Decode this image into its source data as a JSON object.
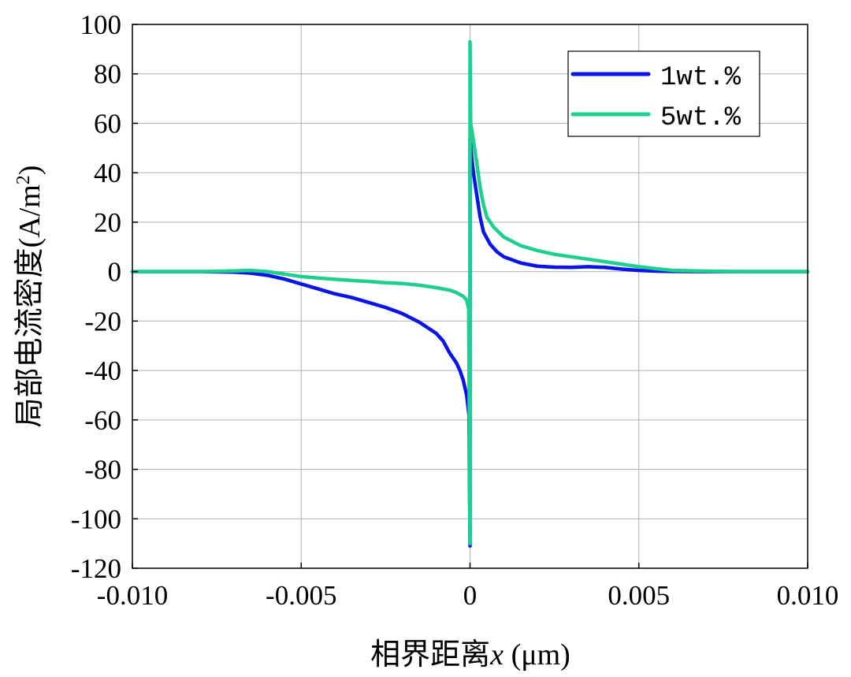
{
  "chart_data": {
    "type": "line",
    "title": "",
    "xlabel": {
      "prefix": "相界距离",
      "variable": "x",
      "unit": " (μm)"
    },
    "ylabel": {
      "text": "局部电流密度(A/m",
      "sup": "2",
      "close": ")"
    },
    "xlim": [
      -0.01,
      0.01
    ],
    "ylim": [
      -120,
      100
    ],
    "xticks": [
      -0.01,
      -0.005,
      0,
      0.005,
      0.01
    ],
    "xtick_labels": [
      "-0.010",
      "-0.005",
      "0",
      "0.005",
      "0.010"
    ],
    "yticks": [
      -120,
      -100,
      -80,
      -60,
      -40,
      -20,
      0,
      20,
      40,
      60,
      80,
      100
    ],
    "ytick_labels": [
      "-120",
      "-100",
      "-80",
      "-60",
      "-40",
      "-20",
      "0",
      "20",
      "40",
      "60",
      "80",
      "100"
    ],
    "grid": true,
    "legend": {
      "position": "top-right"
    },
    "series": [
      {
        "name": "1wt.%",
        "color": "#0a14e6",
        "points": [
          [
            -0.01,
            0
          ],
          [
            -0.009,
            0
          ],
          [
            -0.008,
            0
          ],
          [
            -0.007,
            -0.2
          ],
          [
            -0.0065,
            -0.6
          ],
          [
            -0.006,
            -1.5
          ],
          [
            -0.0055,
            -3
          ],
          [
            -0.005,
            -5
          ],
          [
            -0.0045,
            -7
          ],
          [
            -0.004,
            -9
          ],
          [
            -0.0035,
            -10.5
          ],
          [
            -0.003,
            -12.5
          ],
          [
            -0.0025,
            -14.5
          ],
          [
            -0.002,
            -17
          ],
          [
            -0.0015,
            -20.5
          ],
          [
            -0.001,
            -25
          ],
          [
            -0.0008,
            -28
          ],
          [
            -0.0006,
            -33
          ],
          [
            -0.0004,
            -37
          ],
          [
            -0.0003,
            -40
          ],
          [
            -0.0002,
            -44
          ],
          [
            -0.0001,
            -50
          ],
          [
            -3e-05,
            -58
          ],
          [
            0,
            -111
          ],
          [
            0,
            54
          ],
          [
            5e-05,
            46
          ],
          [
            0.0001,
            40
          ],
          [
            0.0002,
            31
          ],
          [
            0.0003,
            22
          ],
          [
            0.0004,
            16
          ],
          [
            0.0006,
            11
          ],
          [
            0.0008,
            8
          ],
          [
            0.001,
            6
          ],
          [
            0.0015,
            3.5
          ],
          [
            0.002,
            2.2
          ],
          [
            0.0025,
            1.8
          ],
          [
            0.003,
            1.7
          ],
          [
            0.0035,
            2
          ],
          [
            0.004,
            1.7
          ],
          [
            0.0045,
            1
          ],
          [
            0.005,
            0.5
          ],
          [
            0.0055,
            0.2
          ],
          [
            0.006,
            0.1
          ],
          [
            0.007,
            0
          ],
          [
            0.008,
            0
          ],
          [
            0.009,
            0
          ],
          [
            0.01,
            0
          ]
        ]
      },
      {
        "name": "5wt.%",
        "color": "#1ecf8e",
        "points": [
          [
            -0.01,
            0
          ],
          [
            -0.009,
            0
          ],
          [
            -0.008,
            0
          ],
          [
            -0.007,
            0.3
          ],
          [
            -0.0065,
            0.5
          ],
          [
            -0.006,
            0
          ],
          [
            -0.0055,
            -1
          ],
          [
            -0.005,
            -2
          ],
          [
            -0.0045,
            -2.6
          ],
          [
            -0.004,
            -3.1
          ],
          [
            -0.0035,
            -3.6
          ],
          [
            -0.003,
            -4
          ],
          [
            -0.0025,
            -4.5
          ],
          [
            -0.002,
            -4.8
          ],
          [
            -0.0015,
            -5.5
          ],
          [
            -0.001,
            -6.5
          ],
          [
            -0.0006,
            -7.5
          ],
          [
            -0.0004,
            -8.5
          ],
          [
            -0.0002,
            -10
          ],
          [
            -0.0001,
            -11.5
          ],
          [
            -4e-05,
            -15
          ],
          [
            0,
            -110
          ],
          [
            0,
            93
          ],
          [
            2e-05,
            60
          ],
          [
            0.0001,
            53
          ],
          [
            0.0002,
            44
          ],
          [
            0.0003,
            34
          ],
          [
            0.0004,
            27
          ],
          [
            0.0005,
            22
          ],
          [
            0.0007,
            18
          ],
          [
            0.001,
            14
          ],
          [
            0.0015,
            10.5
          ],
          [
            0.002,
            8.5
          ],
          [
            0.0025,
            7
          ],
          [
            0.003,
            6
          ],
          [
            0.0035,
            5
          ],
          [
            0.004,
            4
          ],
          [
            0.0045,
            3
          ],
          [
            0.005,
            2
          ],
          [
            0.0055,
            1.2
          ],
          [
            0.006,
            0.5
          ],
          [
            0.007,
            0.2
          ],
          [
            0.008,
            0
          ],
          [
            0.009,
            0
          ],
          [
            0.01,
            0
          ]
        ]
      }
    ]
  }
}
